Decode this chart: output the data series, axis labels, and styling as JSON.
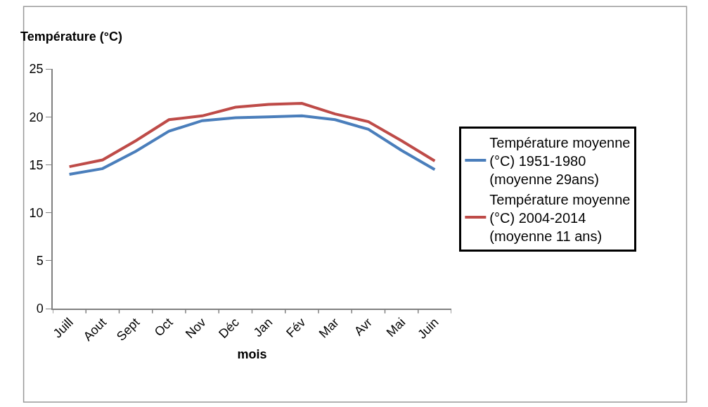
{
  "chart_data": {
    "type": "line",
    "ylabel": "Température (°C)",
    "xlabel": "mois",
    "categories": [
      "Juill",
      "Aout",
      "Sept",
      "Oct",
      "Nov",
      "Déc",
      "Jan",
      "Fév",
      "Mar",
      "Avr",
      "Mai",
      "Juin"
    ],
    "series": [
      {
        "name": "Température moyenne (°C) 1951-1980 (moyenne 29ans)",
        "color": "#4a7ebb",
        "values": [
          14.0,
          14.6,
          16.4,
          18.5,
          19.6,
          19.9,
          20.0,
          20.1,
          19.7,
          18.7,
          16.5,
          14.5
        ]
      },
      {
        "name": "Température moyenne (°C) 2004-2014 (moyenne 11 ans)",
        "color": "#be4b48",
        "values": [
          14.8,
          15.5,
          17.5,
          19.7,
          20.1,
          21.0,
          21.3,
          21.4,
          20.3,
          19.5,
          17.5,
          15.4
        ]
      }
    ],
    "ylim": [
      0,
      25
    ],
    "yticks": [
      0,
      5,
      10,
      15,
      20,
      25
    ],
    "grid": false,
    "legend": "right",
    "marker": "none",
    "line_style": "solid"
  }
}
